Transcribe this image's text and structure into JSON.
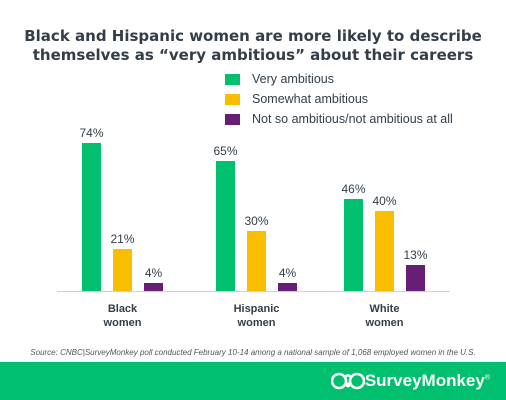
{
  "title": {
    "line1": "Black and Hispanic women are more likely to describe",
    "line2": "themselves as “very ambitious” about their careers"
  },
  "source": "Source: CNBC|SurveyMonkey poll conducted February 10-14 among a national sample of 1,068 employed women in the U.S.",
  "brand": {
    "name": "SurveyMonkey",
    "trademark": "®",
    "logo_icon": "monkey-logo-icon"
  },
  "colors": {
    "very": "#00bf6f",
    "somewhat": "#f9be00",
    "not": "#671e75",
    "footer": "#00bf6f",
    "text": "#333e48"
  },
  "chart_data": {
    "type": "bar",
    "categories": [
      [
        "Black",
        "women"
      ],
      [
        "Hispanic",
        "women"
      ],
      [
        "White",
        "women"
      ]
    ],
    "series": [
      {
        "name": "Very ambitious",
        "color": "#00bf6f",
        "values": [
          74,
          65,
          46
        ]
      },
      {
        "name": "Somewhat ambitious",
        "color": "#f9be00",
        "values": [
          21,
          30,
          40
        ]
      },
      {
        "name": "Not so ambitious/not ambitious at all",
        "color": "#671e75",
        "values": [
          4,
          4,
          13
        ]
      }
    ],
    "value_suffix": "%",
    "ylim": [
      0,
      100
    ],
    "legend_position": "top-right",
    "grid": false
  }
}
